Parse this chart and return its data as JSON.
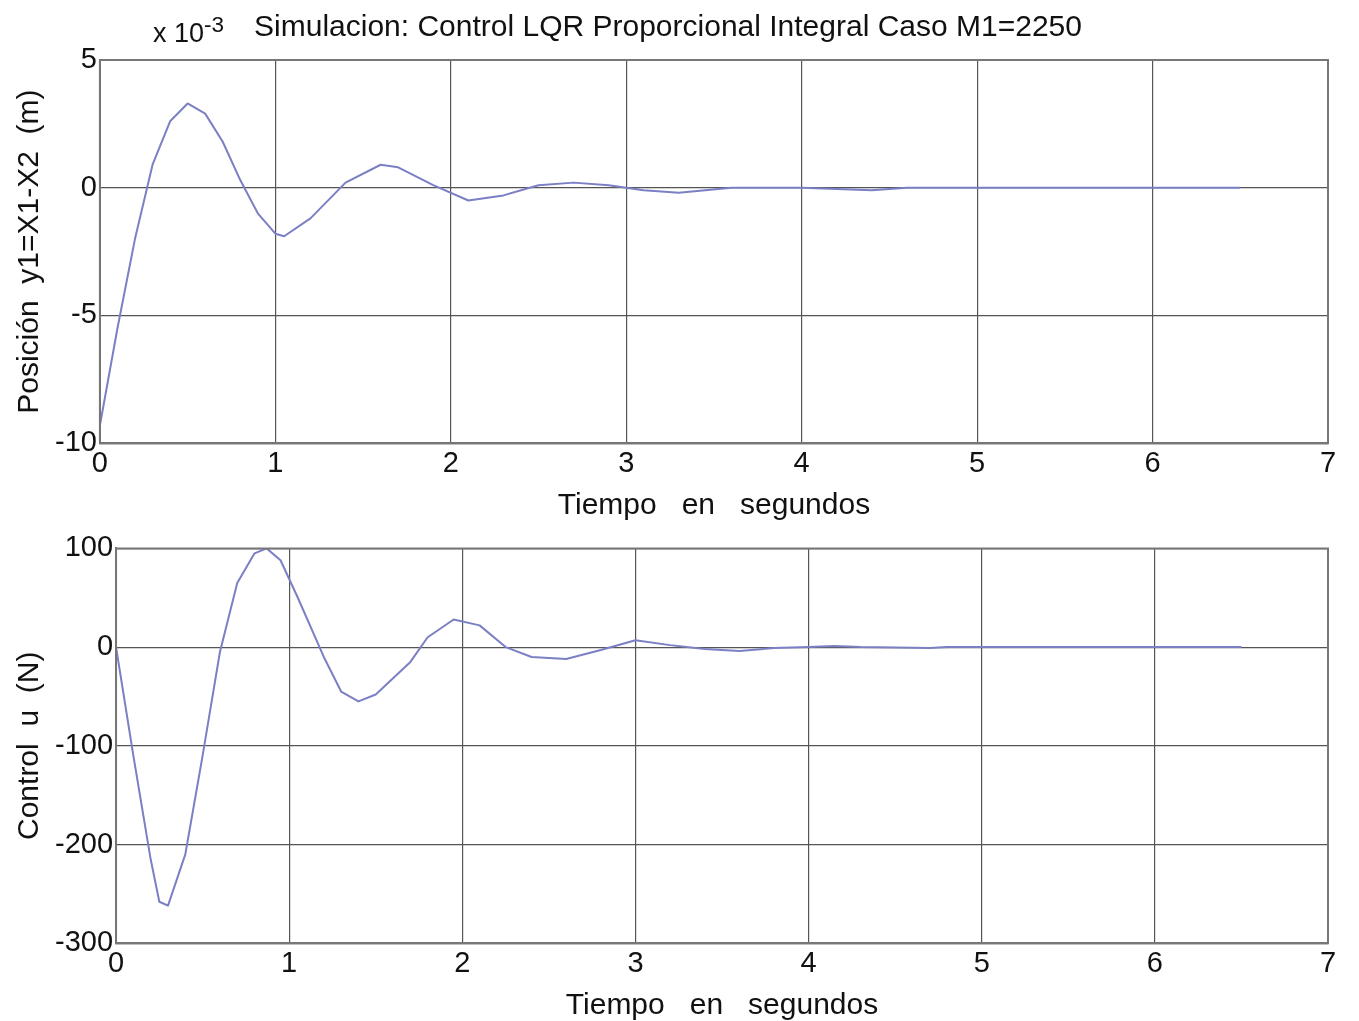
{
  "chart_data": [
    {
      "type": "line",
      "title": "Simulacion: Control LQR Proporcional Integral Caso M1=2250",
      "xlabel": "Tiempo   en   segundos",
      "ylabel": "Posición  y1=X1-X2  (m)",
      "annotations": [
        "x 10$^{-3}$"
      ],
      "xlim": [
        0,
        7
      ],
      "xticks": [
        0,
        1,
        2,
        3,
        4,
        5,
        6,
        7
      ],
      "ylim": [
        -10,
        5
      ],
      "yticks": [
        -10,
        -5,
        0,
        5
      ],
      "grid": true,
      "legend": false,
      "marker": "none",
      "line_style": "solid",
      "series": [
        {
          "color": "#7b7fc4",
          "x": [
            0,
            0.1,
            0.2,
            0.3,
            0.4,
            0.5,
            0.6,
            0.7,
            0.8,
            0.9,
            1.0,
            1.05,
            1.2,
            1.4,
            1.6,
            1.7,
            1.9,
            2.1,
            2.3,
            2.5,
            2.7,
            2.9,
            3.1,
            3.3,
            3.6,
            4.0,
            4.4,
            4.6,
            5.0,
            6.5
          ],
          "values": [
            -9.3,
            -5.5,
            -2.0,
            0.9,
            2.6,
            3.3,
            2.9,
            1.8,
            0.3,
            -1.0,
            -1.8,
            -1.9,
            -1.2,
            0.2,
            0.9,
            0.8,
            0.1,
            -0.5,
            -0.3,
            0.1,
            0.2,
            0.1,
            -0.1,
            -0.2,
            0,
            0,
            -0.1,
            0,
            0,
            0
          ]
        }
      ]
    },
    {
      "type": "line",
      "xlabel": "Tiempo   en   segundos",
      "ylabel": "Control  u  (N)",
      "xlim": [
        0,
        7
      ],
      "xticks": [
        0,
        1,
        2,
        3,
        4,
        5,
        6,
        7
      ],
      "ylim": [
        -300,
        100
      ],
      "yticks": [
        -300,
        -200,
        -100,
        0,
        100
      ],
      "grid": true,
      "legend": false,
      "marker": "none",
      "line_style": "solid",
      "series": [
        {
          "color": "#7b7fc4",
          "x": [
            0,
            0.1,
            0.2,
            0.25,
            0.3,
            0.4,
            0.5,
            0.6,
            0.7,
            0.8,
            0.87,
            0.95,
            1.05,
            1.2,
            1.3,
            1.4,
            1.5,
            1.7,
            1.8,
            1.95,
            2.1,
            2.25,
            2.4,
            2.6,
            2.8,
            3.0,
            3.2,
            3.4,
            3.6,
            3.8,
            4.0,
            4.15,
            4.3,
            4.7,
            4.8,
            6.5
          ],
          "values": [
            0,
            -110,
            -215,
            -258,
            -262,
            -210,
            -110,
            -5,
            65,
            95,
            100,
            88,
            50,
            -10,
            -45,
            -55,
            -48,
            -15,
            10,
            28,
            22,
            0,
            -10,
            -12,
            -3,
            7,
            2,
            -2,
            -4,
            -1,
            0,
            1,
            0,
            -1,
            0,
            0
          ]
        }
      ]
    }
  ]
}
